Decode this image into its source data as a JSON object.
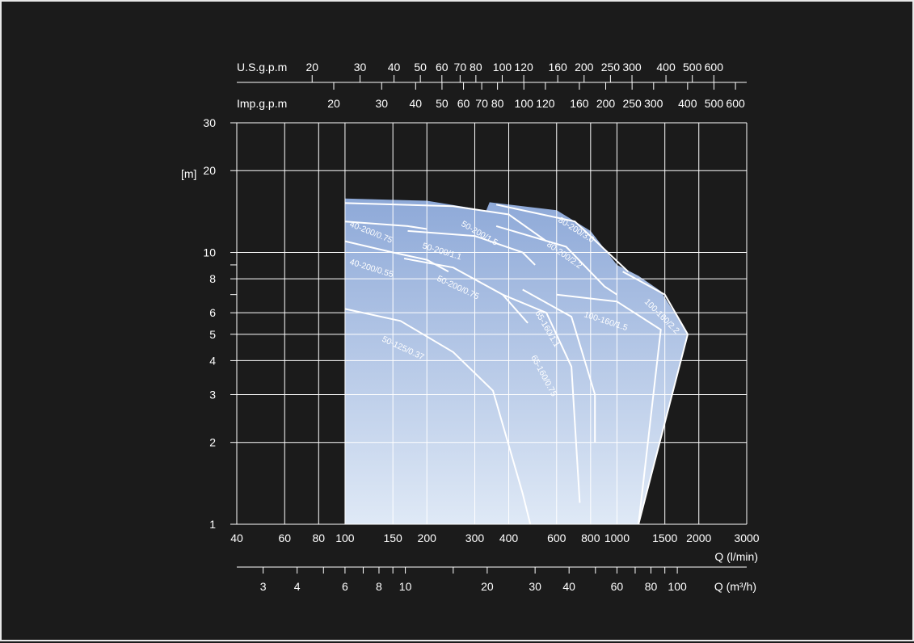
{
  "chart_data": {
    "type": "area",
    "title": "",
    "xlabel": "Q (l/min)",
    "xlabel_m3h": "Q (m³/h)",
    "ylabel": "[m]",
    "x_scale": "log",
    "y_scale": "log",
    "xlim": [
      40,
      3000
    ],
    "ylim": [
      1,
      30
    ],
    "grid": true,
    "x_ticks": [
      "40",
      "60",
      "80",
      "100",
      "150",
      "200",
      "300",
      "400",
      "600",
      "800",
      "1000",
      "1500",
      "2000",
      "3000"
    ],
    "y_ticks": [
      "1",
      "2",
      "3",
      "4",
      "5",
      "6",
      "8",
      "10",
      "20",
      "30"
    ],
    "usgpm_label": "U.S.g.p.m",
    "usgpm_ticks": [
      "20",
      "30",
      "40",
      "50",
      "60",
      "70",
      "80",
      "100",
      "120",
      "160",
      "200",
      "250",
      "300",
      "400",
      "500",
      "600"
    ],
    "impgpm_label": "Imp.g.p.m",
    "impgpm_ticks": [
      "20",
      "30",
      "40",
      "50",
      "60",
      "70",
      "80",
      "100",
      "120",
      "160",
      "200",
      "250",
      "300",
      "400",
      "500",
      "600"
    ],
    "m3h_ticks": [
      "3",
      "4",
      "6",
      "8",
      "10",
      "20",
      "30",
      "40",
      "60",
      "80",
      "100"
    ],
    "series": [
      {
        "name": "50-125/0.37",
        "points": [
          [
            100,
            6.2
          ],
          [
            160,
            5.6
          ],
          [
            250,
            4.3
          ],
          [
            350,
            3.1
          ],
          [
            450,
            1.3
          ],
          [
            480,
            1.0
          ]
        ]
      },
      {
        "name": "40-200/0.55",
        "points": [
          [
            100,
            11.0
          ],
          [
            150,
            10.0
          ],
          [
            200,
            9.4
          ],
          [
            240,
            8.5
          ]
        ]
      },
      {
        "name": "40-200/0.75",
        "points": [
          [
            100,
            13.0
          ],
          [
            170,
            12.5
          ],
          [
            200,
            12.2
          ]
        ]
      },
      {
        "name": "50-200/0.75",
        "points": [
          [
            165,
            9.5
          ],
          [
            250,
            8.8
          ],
          [
            380,
            7.0
          ],
          [
            470,
            5.5
          ]
        ]
      },
      {
        "name": "50-200/1.1",
        "points": [
          [
            170,
            12.0
          ],
          [
            300,
            11.5
          ],
          [
            450,
            10.0
          ],
          [
            500,
            9.0
          ]
        ]
      },
      {
        "name": "50-200/1.5",
        "points": [
          [
            100,
            15.2
          ],
          [
            250,
            14.8
          ],
          [
            400,
            13.8
          ],
          [
            550,
            11.0
          ]
        ]
      },
      {
        "name": "65-160/0.75",
        "points": [
          [
            380,
            7.0
          ],
          [
            550,
            6.0
          ],
          [
            680,
            3.8
          ],
          [
            730,
            1.2
          ]
        ]
      },
      {
        "name": "65-160/1.1",
        "points": [
          [
            450,
            7.3
          ],
          [
            680,
            5.8
          ],
          [
            830,
            3.0
          ],
          [
            830,
            2.0
          ]
        ]
      },
      {
        "name": "80-200/2.2",
        "points": [
          [
            360,
            12.5
          ],
          [
            650,
            10.5
          ],
          [
            900,
            7.5
          ],
          [
            1000,
            7.0
          ]
        ]
      },
      {
        "name": "80-200/3.0",
        "points": [
          [
            360,
            15.0
          ],
          [
            700,
            13.0
          ],
          [
            1100,
            8.5
          ]
        ]
      },
      {
        "name": "100-160/1.5",
        "points": [
          [
            600,
            7.0
          ],
          [
            1000,
            6.6
          ],
          [
            1450,
            5.2
          ],
          [
            1200,
            1.0
          ]
        ]
      },
      {
        "name": "100-160/2.2",
        "points": [
          [
            1050,
            8.5
          ],
          [
            1500,
            7.0
          ],
          [
            1820,
            5.0
          ],
          [
            1200,
            1.0
          ]
        ]
      }
    ],
    "fill_color_top": "#8ea9d8",
    "fill_color_bottom": "#dfe9f6",
    "background": "#1b1b1b",
    "line_color": "#ffffff"
  }
}
